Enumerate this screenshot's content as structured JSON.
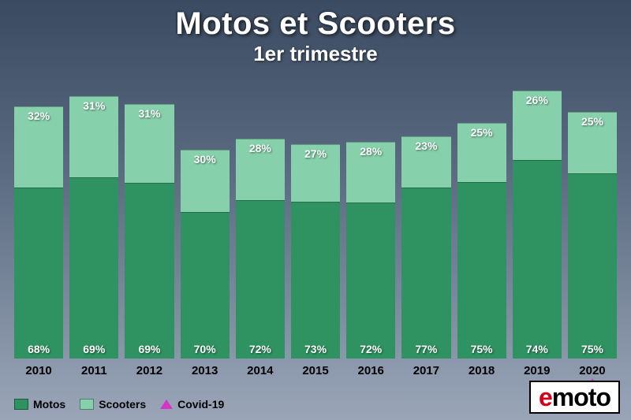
{
  "title": "Motos et Scooters",
  "subtitle": "1er trimestre",
  "chart": {
    "type": "stacked-bar",
    "ymax": 100,
    "categories": [
      "2010",
      "2011",
      "2012",
      "2013",
      "2014",
      "2015",
      "2016",
      "2017",
      "2018",
      "2019",
      "2020"
    ],
    "series": {
      "motos": {
        "label": "Motos",
        "color": "#2e9360",
        "values": [
          68,
          69,
          69,
          70,
          72,
          73,
          72,
          77,
          75,
          74,
          75
        ]
      },
      "scooters": {
        "label": "Scooters",
        "color": "#86d1ab",
        "values": [
          32,
          31,
          31,
          30,
          28,
          27,
          28,
          23,
          25,
          26,
          25
        ]
      }
    },
    "total_scale": [
      94,
      98,
      95,
      78,
      82,
      80,
      81,
      83,
      88,
      100,
      92
    ],
    "covid_marker": {
      "label": "Covid-19",
      "color": "#d633c8",
      "years": [
        "2020"
      ]
    },
    "background_gradient_top": "#3a4a60",
    "background_gradient_bottom": "#9aa5b8",
    "x_label_color": "#000000",
    "x_label_fontsize": 15,
    "value_label_color": "#ffffff",
    "value_label_fontsize": 14
  },
  "legend": {
    "items": [
      {
        "key": "motos",
        "type": "swatch",
        "label": "Motos"
      },
      {
        "key": "scooters",
        "type": "swatch",
        "label": "Scooters"
      },
      {
        "key": "covid",
        "type": "triangle",
        "label": "Covid-19"
      }
    ]
  },
  "logo": {
    "e": "e",
    "rest": "moto"
  }
}
